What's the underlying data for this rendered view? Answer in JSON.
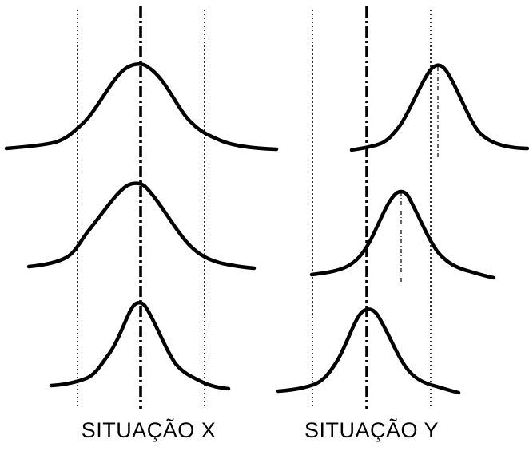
{
  "labels": {
    "situation_x": "SITUAÇÃO X",
    "situation_y": "SITUAÇÃO Y"
  },
  "colors": {
    "ink": "#000000",
    "background": "#ffffff"
  }
}
